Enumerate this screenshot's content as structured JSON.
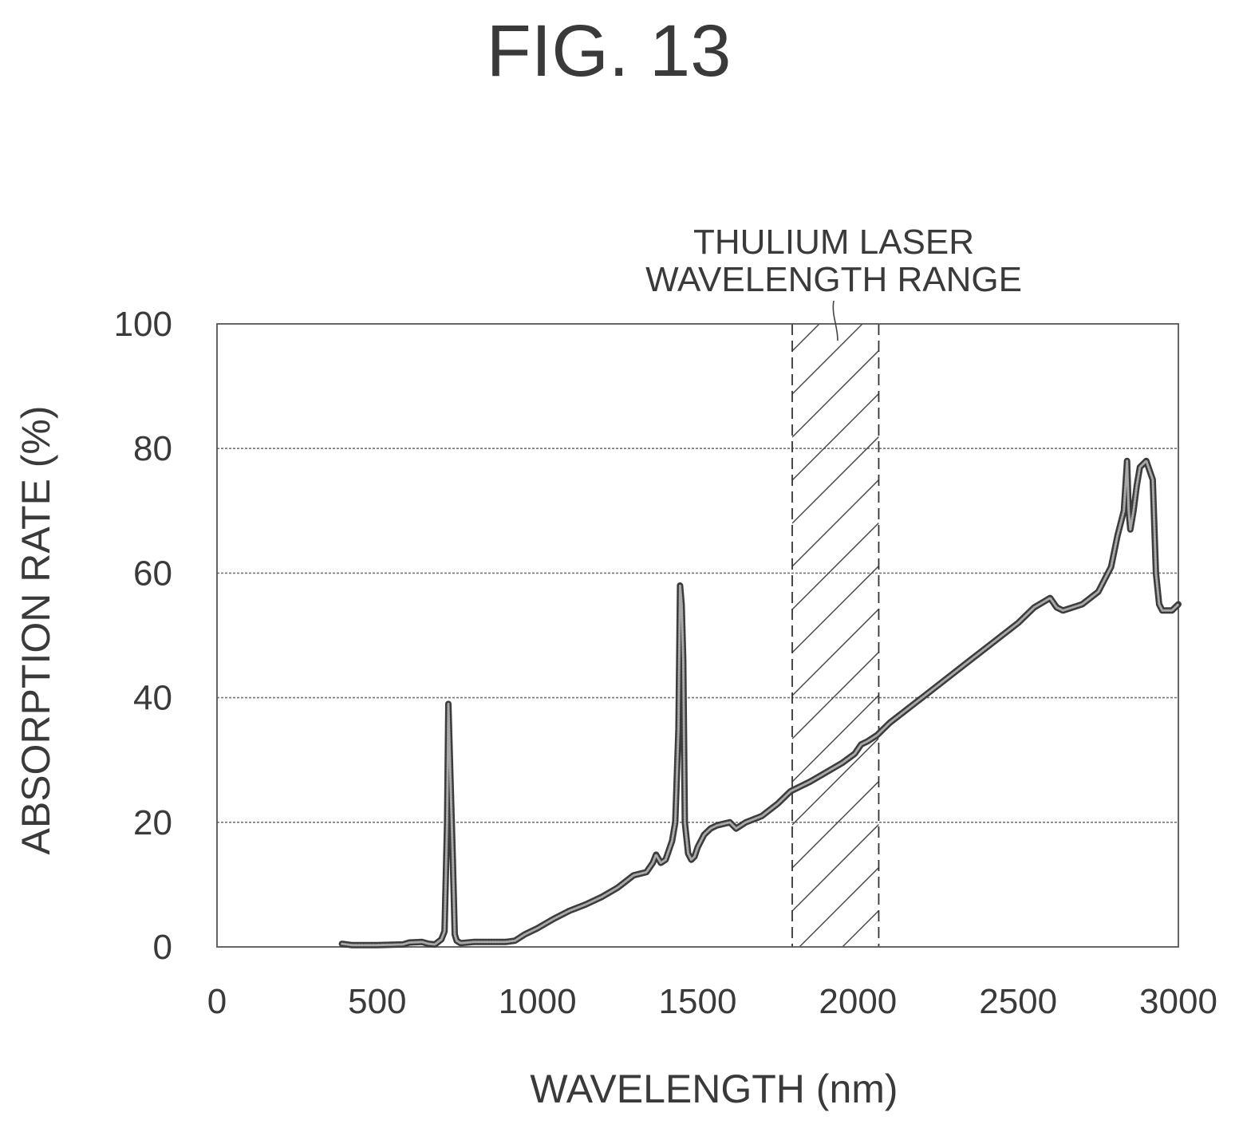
{
  "figure_title": "FIG. 13",
  "chart_data": {
    "type": "line",
    "title": "",
    "xlabel": "WAVELENGTH (nm)",
    "ylabel": "ABSORPTION RATE (%)",
    "xlim": [
      0,
      3000
    ],
    "ylim": [
      0,
      100
    ],
    "x_ticks": [
      "0",
      "500",
      "1000",
      "1500",
      "2000",
      "2500",
      "3000"
    ],
    "y_ticks": [
      "0",
      "20",
      "40",
      "60",
      "80",
      "100"
    ],
    "grid": "horizontal",
    "band": {
      "label_lines": [
        "THULIUM LASER",
        "WAVELENGTH RANGE"
      ],
      "x_start": 1795,
      "x_end": 2065
    },
    "series": [
      {
        "x": [
          390,
          420,
          500,
          580,
          600,
          640,
          660,
          680,
          700,
          710,
          718,
          722,
          728,
          736,
          742,
          748,
          760,
          800,
          850,
          900,
          930,
          960,
          1000,
          1050,
          1100,
          1150,
          1200,
          1250,
          1300,
          1340,
          1360,
          1370,
          1385,
          1400,
          1420,
          1430,
          1440,
          1445,
          1450,
          1455,
          1460,
          1470,
          1480,
          1490,
          1500,
          1520,
          1540,
          1560,
          1600,
          1620,
          1650,
          1700,
          1750,
          1790,
          1850,
          1900,
          1950,
          1990,
          2010,
          2030,
          2060,
          2100,
          2150,
          2200,
          2250,
          2300,
          2350,
          2400,
          2450,
          2500,
          2550,
          2600,
          2620,
          2640,
          2700,
          2750,
          2790,
          2810,
          2830,
          2840,
          2845,
          2850,
          2860,
          2870,
          2880,
          2900,
          2920,
          2930,
          2940,
          2950,
          2960,
          2980,
          3000
        ],
        "y": [
          0.5,
          0.3,
          0.3,
          0.4,
          0.7,
          0.8,
          0.5,
          0.4,
          1.2,
          2.5,
          20,
          39,
          28,
          14,
          2,
          1.0,
          0.6,
          0.8,
          0.8,
          0.8,
          1.0,
          2.0,
          3.0,
          4.5,
          5.8,
          6.8,
          8.0,
          9.5,
          11.5,
          12,
          13.5,
          14.8,
          13.5,
          14,
          17,
          20,
          35,
          58,
          55,
          46,
          20,
          15,
          14,
          14.5,
          16,
          18,
          19,
          19.5,
          20,
          19,
          20,
          21,
          23,
          25,
          26.5,
          28,
          29.5,
          31,
          32.5,
          33,
          34,
          36,
          38,
          40,
          42,
          44,
          46,
          48,
          50,
          52,
          54.5,
          56,
          54.5,
          54,
          55,
          57,
          61,
          66,
          70,
          78,
          70,
          67,
          70,
          74,
          77,
          78,
          75,
          60,
          55,
          54,
          54,
          54,
          55
        ]
      }
    ]
  }
}
